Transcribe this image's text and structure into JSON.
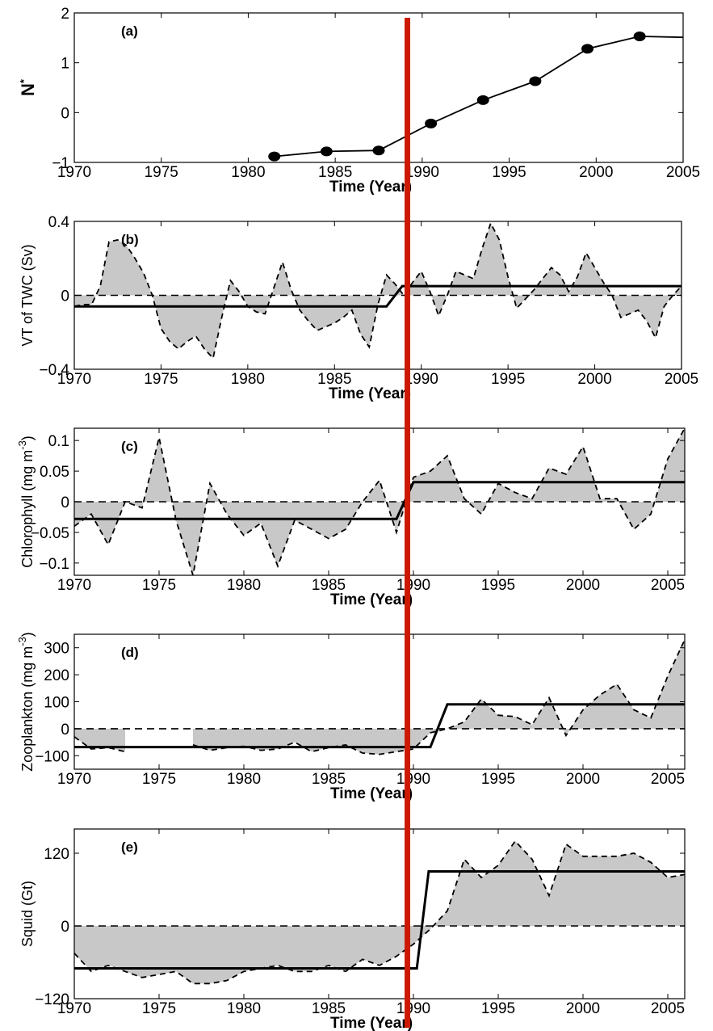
{
  "colors": {
    "regime_marker": "#cc1a00",
    "anomaly_fill": "#c8c8c8"
  },
  "marker_year": 1989.2,
  "chart_data": [
    {
      "type": "line",
      "panel_label": "(a)",
      "ylabel": "N",
      "ylabel_superscript": "*",
      "xlabel": "Time (Year)",
      "xlim": [
        1970,
        2005
      ],
      "ylim": [
        -1,
        2
      ],
      "xticks": [
        "1970",
        "1975",
        "1980",
        "1985",
        "1990",
        "1995",
        "2000",
        "2005"
      ],
      "xtick_values": [
        1970,
        1975,
        1980,
        1985,
        1990,
        1995,
        2000,
        2005
      ],
      "yticks": [
        "−1",
        "0",
        "1",
        "2"
      ],
      "ytick_values": [
        -1,
        0,
        1,
        2
      ],
      "series": [
        {
          "x": [
            1981.5,
            1984.5,
            1987.5,
            1990.5,
            1993.5,
            1996.5,
            1999.5,
            2002.5,
            2005
          ],
          "y": [
            -0.88,
            -0.78,
            -0.76,
            -0.22,
            0.25,
            0.63,
            1.28,
            1.53,
            1.51
          ],
          "markers": [
            true,
            true,
            true,
            true,
            true,
            true,
            true,
            true,
            false
          ]
        }
      ]
    },
    {
      "type": "area",
      "panel_label": "(b)",
      "ylabel": "VT of TWC (Sv)",
      "xlabel": "Time (Year)",
      "xlim": [
        1970,
        2005
      ],
      "ylim": [
        -0.4,
        0.4
      ],
      "xticks": [
        "1970",
        "1975",
        "1980",
        "1985",
        "1990",
        "1995",
        "2000",
        "2005"
      ],
      "xtick_values": [
        1970,
        1975,
        1980,
        1985,
        1990,
        1995,
        2000,
        2005
      ],
      "yticks": [
        "−0.4",
        "0",
        "0.4"
      ],
      "ytick_values": [
        -0.4,
        0,
        0.4
      ],
      "anomaly": {
        "x": [
          1970,
          1970.5,
          1971,
          1971.5,
          1972,
          1972.5,
          1973,
          1973.5,
          1974,
          1974.5,
          1975,
          1975.5,
          1976,
          1976.5,
          1977,
          1977.5,
          1978,
          1978.5,
          1979,
          1979.5,
          1980,
          1980.5,
          1981,
          1981.5,
          1982,
          1982.5,
          1983,
          1983.5,
          1984,
          1984.5,
          1985,
          1985.5,
          1986,
          1986.5,
          1987,
          1987.5,
          1988,
          1988.5,
          1989,
          1989.5,
          1990,
          1990.5,
          1991,
          1991.5,
          1992,
          1992.5,
          1993,
          1993.5,
          1994,
          1994.5,
          1995,
          1995.5,
          1996,
          1996.5,
          1997,
          1997.5,
          1998,
          1998.5,
          1999,
          1999.5,
          2000,
          2000.5,
          2001,
          2001.5,
          2002,
          2002.5,
          2003,
          2003.5,
          2004,
          2004.5,
          2005
        ],
        "y": [
          -0.06,
          -0.05,
          -0.05,
          0.05,
          0.29,
          0.3,
          0.27,
          0.2,
          0.12,
          0.0,
          -0.18,
          -0.25,
          -0.29,
          -0.25,
          -0.22,
          -0.29,
          -0.34,
          -0.12,
          0.08,
          0.02,
          -0.06,
          -0.09,
          -0.1,
          0.04,
          0.18,
          0.03,
          -0.08,
          -0.14,
          -0.19,
          -0.17,
          -0.15,
          -0.12,
          -0.08,
          -0.21,
          -0.28,
          -0.05,
          0.11,
          0.06,
          0.0,
          0.07,
          0.13,
          0.02,
          -0.11,
          0.0,
          0.13,
          0.11,
          0.09,
          0.25,
          0.39,
          0.3,
          0.1,
          -0.07,
          -0.02,
          0.03,
          0.09,
          0.15,
          0.11,
          0.02,
          0.1,
          0.23,
          0.15,
          0.07,
          0.0,
          -0.12,
          -0.1,
          -0.08,
          -0.14,
          -0.23,
          -0.06,
          0.0,
          0.05
        ]
      },
      "regime": {
        "x": [
          1970,
          1988,
          1988.9,
          2005
        ],
        "y": [
          -0.06,
          -0.06,
          0.05,
          0.05
        ]
      }
    },
    {
      "type": "area",
      "panel_label": "(c)",
      "ylabel": "Chlorophyll (mg m",
      "ylabel_superscript": "-3",
      "ylabel_suffix": ")",
      "xlabel": "Time (Year)",
      "xlim": [
        1970,
        2006
      ],
      "ylim": [
        -0.12,
        0.12
      ],
      "xticks": [
        "1970",
        "1975",
        "1980",
        "1985",
        "1990",
        "1995",
        "2000",
        "2005"
      ],
      "xtick_values": [
        1970,
        1975,
        1980,
        1985,
        1990,
        1995,
        2000,
        2005
      ],
      "yticks": [
        "−0.1",
        "−0.05",
        "0",
        "0.05",
        "0.1"
      ],
      "ytick_values": [
        -0.1,
        -0.05,
        0,
        0.05,
        0.1
      ],
      "anomaly": {
        "x": [
          1970,
          1971,
          1972,
          1973,
          1974,
          1975,
          1976,
          1977,
          1978,
          1979,
          1980,
          1981,
          1982,
          1983,
          1984,
          1985,
          1986,
          1987,
          1988,
          1989,
          1990,
          1991,
          1992,
          1993,
          1994,
          1995,
          1996,
          1997,
          1998,
          1999,
          2000,
          2001,
          2002,
          2003,
          2004,
          2005,
          2006
        ],
        "y": [
          -0.04,
          -0.02,
          -0.07,
          0.0,
          -0.01,
          0.105,
          -0.03,
          -0.12,
          0.03,
          -0.02,
          -0.055,
          -0.035,
          -0.105,
          -0.03,
          -0.045,
          -0.06,
          -0.045,
          0.0,
          0.035,
          -0.05,
          0.04,
          0.05,
          0.075,
          0.005,
          -0.02,
          0.03,
          0.015,
          0.005,
          0.055,
          0.045,
          0.09,
          0.005,
          0.005,
          -0.045,
          -0.02,
          0.07,
          0.12
        ]
      },
      "regime": {
        "x": [
          1970,
          1989,
          1990,
          2006
        ],
        "y": [
          -0.028,
          -0.028,
          0.032,
          0.032
        ]
      }
    },
    {
      "type": "area",
      "panel_label": "(d)",
      "ylabel": "Zooplankton (mg m",
      "ylabel_superscript": "-3",
      "ylabel_suffix": ")",
      "xlabel": "Time (Year)",
      "xlim": [
        1970,
        2006
      ],
      "ylim": [
        -150,
        350
      ],
      "xticks": [
        "1970",
        "1975",
        "1980",
        "1985",
        "1990",
        "1995",
        "2000",
        "2005"
      ],
      "xtick_values": [
        1970,
        1975,
        1980,
        1985,
        1990,
        1995,
        2000,
        2005
      ],
      "yticks": [
        "−100",
        "0",
        "100",
        "200",
        "300"
      ],
      "ytick_values": [
        -100,
        0,
        100,
        200,
        300
      ],
      "anomaly_segments": [
        {
          "x": [
            1970,
            1971,
            1972,
            1973
          ],
          "y": [
            -30,
            -75,
            -70,
            -85
          ]
        },
        {
          "x": [
            1977,
            1978,
            1979,
            1980,
            1981,
            1982,
            1983,
            1984,
            1985,
            1986,
            1987,
            1988,
            1989,
            1990,
            1991,
            1992,
            1993,
            1994,
            1995,
            1996,
            1997,
            1998,
            1999,
            2000,
            2001,
            2002,
            2003,
            2004,
            2005,
            2006
          ],
          "y": [
            -60,
            -80,
            -70,
            -65,
            -80,
            -75,
            -50,
            -85,
            -70,
            -60,
            -90,
            -95,
            -85,
            -75,
            -15,
            0,
            25,
            110,
            50,
            45,
            15,
            115,
            -25,
            70,
            125,
            165,
            70,
            40,
            195,
            330
          ]
        }
      ],
      "regime": {
        "x": [
          1970,
          1991,
          1992,
          2006
        ],
        "y": [
          -68,
          -68,
          90,
          90
        ]
      }
    },
    {
      "type": "area",
      "panel_label": "(e)",
      "ylabel": "Squid (Gt)",
      "xlabel": "Time (Year)",
      "xlim": [
        1970,
        2006
      ],
      "ylim": [
        -120,
        160
      ],
      "xticks": [
        "1970",
        "1975",
        "1980",
        "1985",
        "1990",
        "1995",
        "2000",
        "2005"
      ],
      "xtick_values": [
        1970,
        1975,
        1980,
        1985,
        1990,
        1995,
        2000,
        2005
      ],
      "yticks": [
        "−120",
        "0",
        "120"
      ],
      "ytick_values": [
        -120,
        0,
        120
      ],
      "anomaly": {
        "x": [
          1970,
          1971,
          1972,
          1973,
          1974,
          1975,
          1976,
          1977,
          1978,
          1979,
          1980,
          1981,
          1982,
          1983,
          1984,
          1985,
          1986,
          1987,
          1988,
          1989,
          1990,
          1991,
          1992,
          1993,
          1994,
          1995,
          1996,
          1997,
          1998,
          1999,
          2000,
          2001,
          2002,
          2003,
          2004,
          2005,
          2006
        ],
        "y": [
          -45,
          -75,
          -65,
          -75,
          -85,
          -80,
          -75,
          -95,
          -95,
          -90,
          -75,
          -70,
          -65,
          -75,
          -75,
          -65,
          -75,
          -55,
          -65,
          -50,
          -30,
          -5,
          25,
          110,
          80,
          100,
          140,
          110,
          50,
          135,
          115,
          115,
          115,
          120,
          105,
          80,
          85
        ]
      },
      "regime": {
        "x": [
          1970,
          1990.2,
          1990.9,
          2006
        ],
        "y": [
          -70,
          -70,
          90,
          90
        ]
      }
    }
  ]
}
